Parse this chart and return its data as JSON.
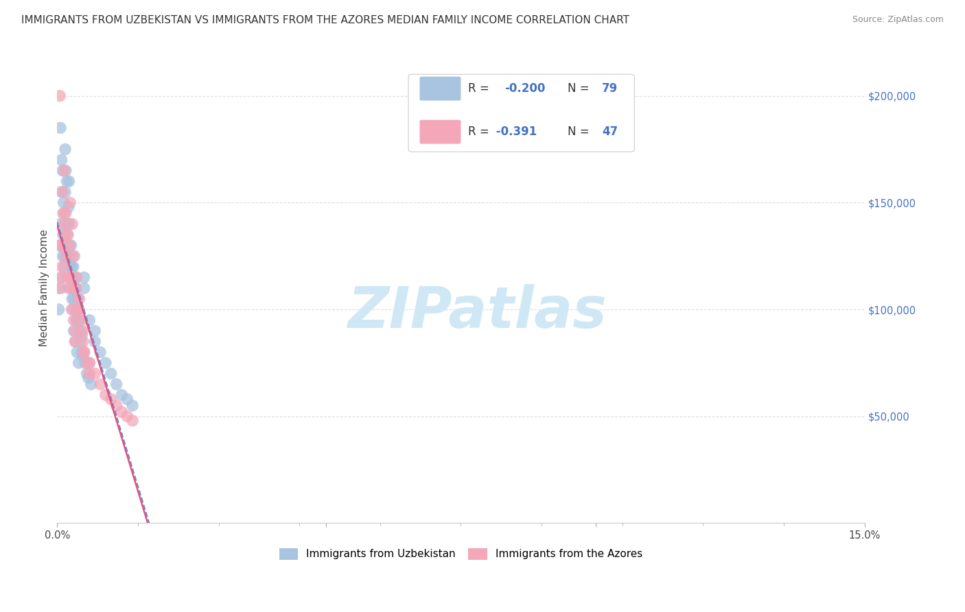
{
  "title": "IMMIGRANTS FROM UZBEKISTAN VS IMMIGRANTS FROM THE AZORES MEDIAN FAMILY INCOME CORRELATION CHART",
  "source": "Source: ZipAtlas.com",
  "ylabel": "Median Family Income",
  "series": [
    {
      "name": "Immigrants from Uzbekistan",
      "color": "#a8c4e0",
      "scatter_alpha": 0.75,
      "R": -0.2,
      "N": 79,
      "line_color": "#5b8dd4",
      "line_style": "--",
      "x": [
        0.0003,
        0.0005,
        0.0006,
        0.0007,
        0.0008,
        0.0009,
        0.001,
        0.0011,
        0.0012,
        0.0013,
        0.0014,
        0.0015,
        0.0016,
        0.0017,
        0.0018,
        0.0019,
        0.002,
        0.0021,
        0.0022,
        0.0023,
        0.0024,
        0.0025,
        0.0026,
        0.0027,
        0.0028,
        0.0029,
        0.003,
        0.0031,
        0.0032,
        0.0033,
        0.0034,
        0.0035,
        0.0036,
        0.0037,
        0.0038,
        0.0039,
        0.004,
        0.0041,
        0.0042,
        0.0043,
        0.0044,
        0.0045,
        0.0046,
        0.0048,
        0.005,
        0.0052,
        0.0055,
        0.0058,
        0.006,
        0.0063,
        0.0006,
        0.0008,
        0.001,
        0.0013,
        0.0015,
        0.0018,
        0.0022,
        0.0025,
        0.0028,
        0.0031,
        0.0034,
        0.0037,
        0.004,
        0.005,
        0.006,
        0.007,
        0.008,
        0.009,
        0.01,
        0.011,
        0.012,
        0.013,
        0.014,
        0.005,
        0.007,
        0.002,
        0.0025,
        0.003,
        0.0035
      ],
      "y": [
        100000,
        130000,
        140000,
        110000,
        155000,
        115000,
        125000,
        135000,
        150000,
        120000,
        125000,
        155000,
        165000,
        130000,
        160000,
        135000,
        125000,
        148000,
        140000,
        130000,
        125000,
        115000,
        130000,
        120000,
        115000,
        125000,
        120000,
        105000,
        110000,
        100000,
        110000,
        115000,
        95000,
        100000,
        105000,
        95000,
        100000,
        95000,
        90000,
        85000,
        90000,
        80000,
        88000,
        78000,
        80000,
        75000,
        70000,
        68000,
        75000,
        65000,
        185000,
        170000,
        165000,
        145000,
        175000,
        140000,
        160000,
        110000,
        105000,
        90000,
        85000,
        80000,
        75000,
        110000,
        95000,
        85000,
        80000,
        75000,
        70000,
        65000,
        60000,
        58000,
        55000,
        115000,
        90000,
        140000,
        120000,
        100000,
        95000
      ]
    },
    {
      "name": "Immigrants from the Azores",
      "color": "#f4a7b9",
      "scatter_alpha": 0.75,
      "R": -0.391,
      "N": 47,
      "line_color": "#e8517a",
      "line_style": "-",
      "x": [
        0.0003,
        0.0005,
        0.0007,
        0.0009,
        0.0011,
        0.0013,
        0.0015,
        0.0017,
        0.0019,
        0.0021,
        0.0023,
        0.0025,
        0.0027,
        0.0029,
        0.0031,
        0.0033,
        0.0035,
        0.0038,
        0.0041,
        0.0044,
        0.0047,
        0.005,
        0.0055,
        0.006,
        0.001,
        0.0013,
        0.0016,
        0.002,
        0.0024,
        0.0028,
        0.0032,
        0.0036,
        0.004,
        0.005,
        0.006,
        0.007,
        0.008,
        0.009,
        0.01,
        0.011,
        0.012,
        0.013,
        0.014,
        0.0048,
        0.0005,
        0.0008,
        0.0033
      ],
      "y": [
        110000,
        130000,
        115000,
        120000,
        145000,
        140000,
        135000,
        125000,
        115000,
        110000,
        130000,
        115000,
        100000,
        110000,
        95000,
        85000,
        110000,
        100000,
        105000,
        95000,
        90000,
        80000,
        75000,
        70000,
        155000,
        165000,
        145000,
        135000,
        150000,
        140000,
        125000,
        115000,
        100000,
        80000,
        75000,
        70000,
        65000,
        60000,
        58000,
        55000,
        52000,
        50000,
        48000,
        85000,
        200000,
        130000,
        90000
      ]
    }
  ],
  "xlim": [
    0.0,
    0.15
  ],
  "ylim": [
    0,
    220000
  ],
  "yticks": [
    0,
    50000,
    100000,
    150000,
    200000
  ],
  "ytick_labels": [
    "",
    "$50,000",
    "$100,000",
    "$150,000",
    "$200,000"
  ],
  "xtick_major": [
    0.0,
    0.05,
    0.1,
    0.15
  ],
  "xtick_minor_count": 10,
  "grid_color": "#dddddd",
  "grid_style": "--",
  "bg_color": "#ffffff",
  "watermark_text": "ZIPatlas",
  "watermark_color": "#d0e8f5",
  "title_fontsize": 11,
  "source_fontsize": 9
}
